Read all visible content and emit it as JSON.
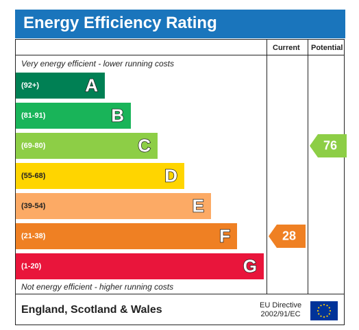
{
  "title": "Energy Efficiency Rating",
  "columns": {
    "current": "Current",
    "potential": "Potential"
  },
  "top_caption": "Very energy efficient - lower running costs",
  "bottom_caption": "Not energy efficient - higher running costs",
  "footer": {
    "region": "England, Scotland & Wales",
    "directive_line1": "EU Directive",
    "directive_line2": "2002/91/EC"
  },
  "colors": {
    "title_bg": "#1a75bc",
    "A": "#008054",
    "B": "#19b459",
    "C": "#8dce46",
    "D": "#ffd500",
    "E": "#fcaa65",
    "F": "#ef8023",
    "G": "#e9153b"
  },
  "chart_data": {
    "type": "bar",
    "categories": [
      "A",
      "B",
      "C",
      "D",
      "E",
      "F",
      "G"
    ],
    "ranges": [
      "(92+)",
      "(81-91)",
      "(69-80)",
      "(55-68)",
      "(39-54)",
      "(21-38)",
      "(1-20)"
    ],
    "series": [
      {
        "name": "Current",
        "value": 28,
        "band": "F"
      },
      {
        "name": "Potential",
        "value": 76,
        "band": "C"
      }
    ]
  }
}
